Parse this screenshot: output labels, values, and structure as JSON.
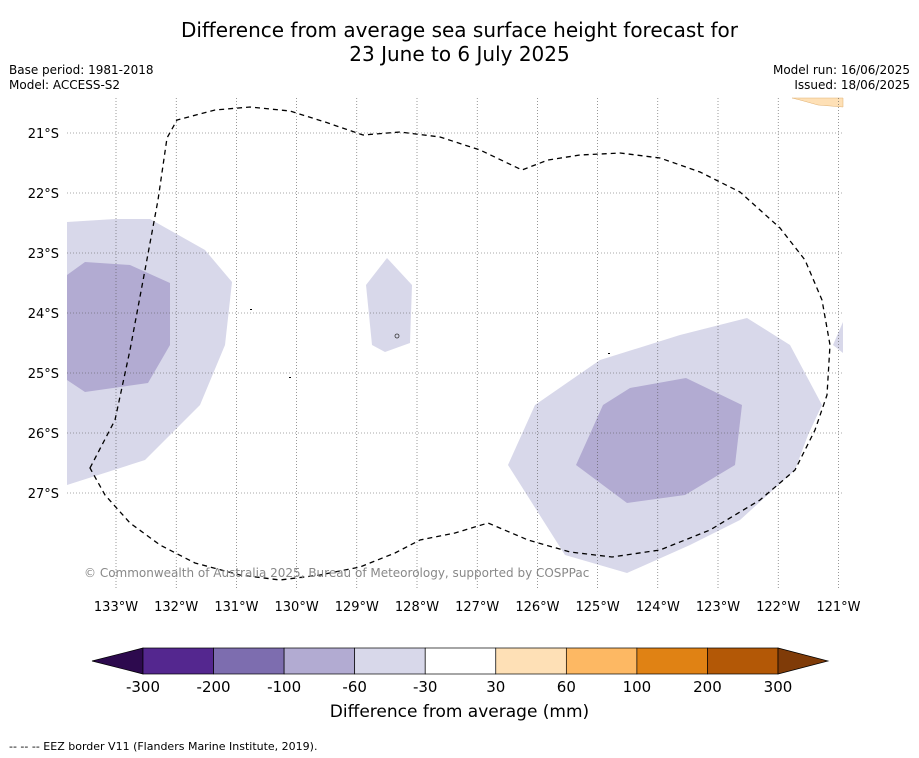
{
  "title_line1": "Difference from average sea surface height forecast for",
  "title_line2": "23 June to 6 July 2025",
  "base_period": "Base period: 1981-2018",
  "model": "Model: ACCESS-S2",
  "model_run": "Model run: 16/06/2025",
  "issued": "Issued: 18/06/2025",
  "copyright": "© Commonwealth of Australia 2025, Bureau of Meteorology, supported by COSPPac",
  "lat_labels": [
    "21°S",
    "22°S",
    "23°S",
    "24°S",
    "25°S",
    "26°S",
    "27°S"
  ],
  "lon_labels": [
    "133°W",
    "132°W",
    "131°W",
    "130°W",
    "129°W",
    "128°W",
    "127°W",
    "126°W",
    "125°W",
    "124°W",
    "123°W",
    "122°W",
    "121°W"
  ],
  "colorbar": {
    "title": "Difference from average (mm)",
    "tick_labels": [
      "-300",
      "-200",
      "-100",
      "-60",
      "-30",
      "30",
      "60",
      "100",
      "200",
      "300"
    ],
    "colors": [
      "#2d0a4e",
      "#54278f",
      "#7d6daf",
      "#b2abd2",
      "#d8d8ea",
      "#ffffff",
      "#fee0b6",
      "#fdb863",
      "#e08214",
      "#b35806",
      "#7f3b08"
    ]
  },
  "legend_note": "--  --  -- EEZ border V11 (Flanders Marine Institute, 2019)."
}
